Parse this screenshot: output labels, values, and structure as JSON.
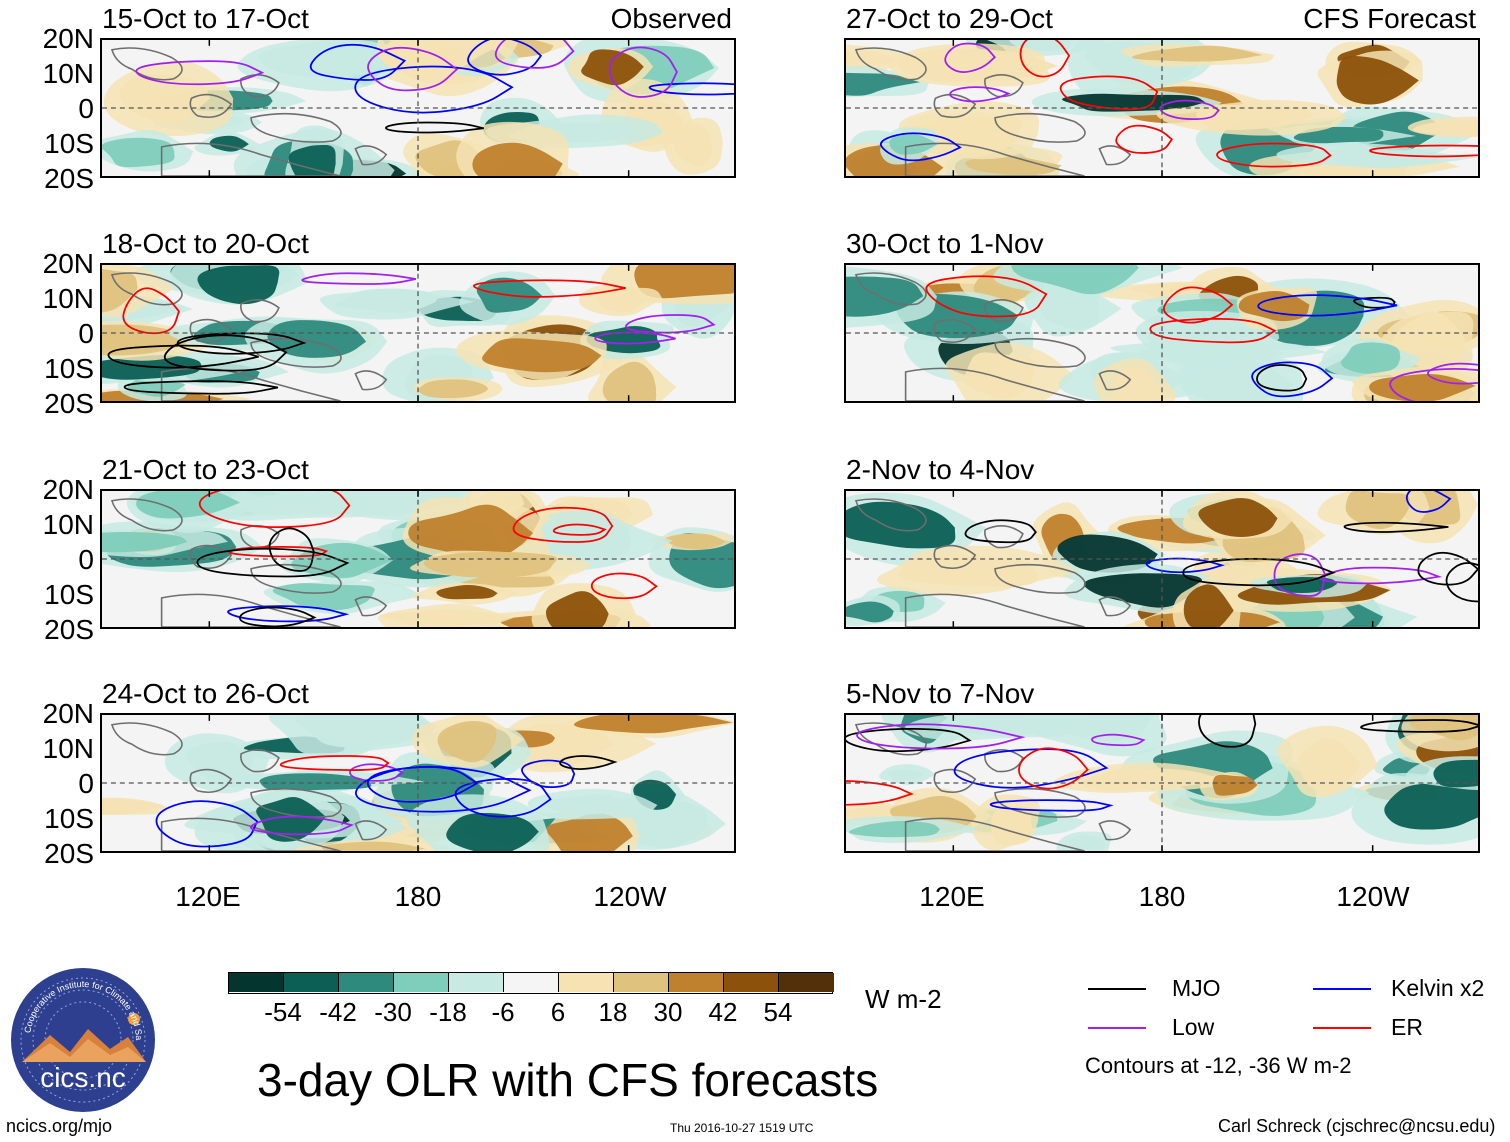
{
  "panels": [
    {
      "title": "15-Oct to 17-Oct",
      "mode": "Observed"
    },
    {
      "title": "27-Oct to 29-Oct",
      "mode": "CFS Forecast"
    },
    {
      "title": "18-Oct to 20-Oct",
      "mode": ""
    },
    {
      "title": "30-Oct to 1-Nov",
      "mode": ""
    },
    {
      "title": "21-Oct to 23-Oct",
      "mode": ""
    },
    {
      "title": "2-Nov to 4-Nov",
      "mode": ""
    },
    {
      "title": "24-Oct to 26-Oct",
      "mode": ""
    },
    {
      "title": "5-Nov to 7-Nov",
      "mode": ""
    }
  ],
  "lat_labels": [
    "20N",
    "10N",
    "0",
    "10S",
    "20S"
  ],
  "lon_labels": [
    "120E",
    "180",
    "120W"
  ],
  "colorbar": {
    "colors": [
      "#05352f",
      "#0b5f54",
      "#2e8a7d",
      "#7fcdbb",
      "#c7eae3",
      "#f5f5f5",
      "#f5e3b4",
      "#dfc27d",
      "#bf812d",
      "#8c510a",
      "#54300a"
    ],
    "labels": [
      "-54",
      "-42",
      "-30",
      "-18",
      "-6",
      "6",
      "18",
      "30",
      "42",
      "54"
    ],
    "units": "W m-2"
  },
  "title": "3-day OLR with CFS forecasts",
  "legend": {
    "items": [
      {
        "label": "MJO",
        "color": "#000000"
      },
      {
        "label": "Kelvin x2",
        "color": "#0000ff"
      },
      {
        "label": "Low",
        "color": "#a020f0"
      },
      {
        "label": "ER",
        "color": "#ff0000"
      }
    ],
    "note": "Contours at -12, -36 W m-2"
  },
  "logo": {
    "text": "cics.nc",
    "ring_text": "Cooperative Institute for Climate and Satellites"
  },
  "footer": {
    "url": "ncics.org/mjo",
    "timestamp": "Thu 2016-10-27 1519 UTC",
    "credit": "Carl Schreck (cjschrec@ncsu.edu)"
  },
  "colors": {
    "land": "#6e6e6e",
    "grid": "#555555"
  }
}
